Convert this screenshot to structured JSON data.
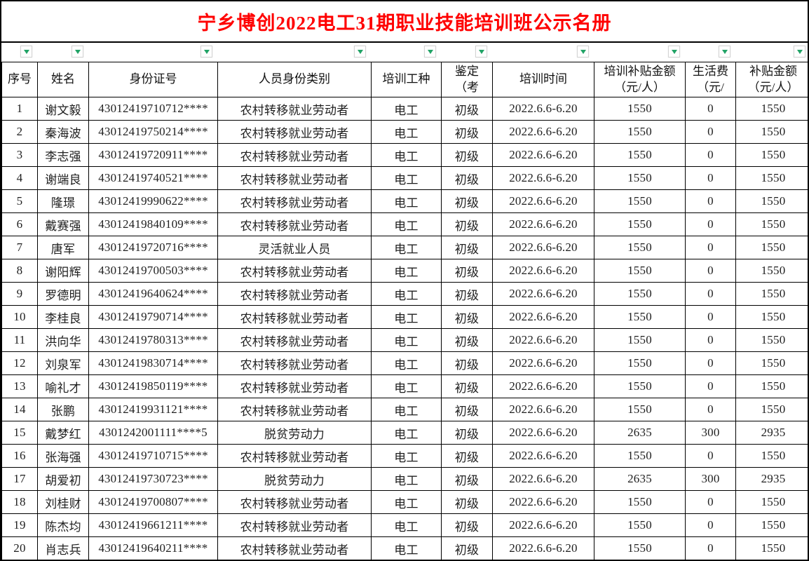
{
  "title": {
    "text": "宁乡博创2022电工31期职业技能培训班公示名册"
  },
  "colors": {
    "title_red": "#ff0000",
    "filter_green": "#21a366",
    "grid_black": "#000000"
  },
  "filter_row": {
    "button_count": 10,
    "icon": "chevron-down-icon"
  },
  "table": {
    "columns": [
      {
        "key": "index",
        "label": "序号"
      },
      {
        "key": "name",
        "label": "姓名"
      },
      {
        "key": "id-number",
        "label": "身份证号"
      },
      {
        "key": "identity-category",
        "label": "人员身份类别"
      },
      {
        "key": "trade",
        "label": "培训工种"
      },
      {
        "key": "appraisal-level",
        "label": "鉴定\n（考"
      },
      {
        "key": "training-time",
        "label": "培训时间"
      },
      {
        "key": "training-subsidy",
        "label": "培训补贴金额\n（元/人）"
      },
      {
        "key": "living-allowance",
        "label": "生活费\n（元/"
      },
      {
        "key": "subsidy-total",
        "label": "补贴金额\n（元/人）"
      }
    ],
    "rows": [
      [
        "1",
        "谢文毅",
        "43012419710712****",
        "农村转移就业劳动者",
        "电工",
        "初级",
        "2022.6.6-6.20",
        "1550",
        "0",
        "1550"
      ],
      [
        "2",
        "秦海波",
        "43012419750214****",
        "农村转移就业劳动者",
        "电工",
        "初级",
        "2022.6.6-6.20",
        "1550",
        "0",
        "1550"
      ],
      [
        "3",
        "李志强",
        "43012419720911****",
        "农村转移就业劳动者",
        "电工",
        "初级",
        "2022.6.6-6.20",
        "1550",
        "0",
        "1550"
      ],
      [
        "4",
        "谢端良",
        "43012419740521****",
        "农村转移就业劳动者",
        "电工",
        "初级",
        "2022.6.6-6.20",
        "1550",
        "0",
        "1550"
      ],
      [
        "5",
        "隆璟",
        "43012419990622****",
        "农村转移就业劳动者",
        "电工",
        "初级",
        "2022.6.6-6.20",
        "1550",
        "0",
        "1550"
      ],
      [
        "6",
        "戴赛强",
        "43012419840109****",
        "农村转移就业劳动者",
        "电工",
        "初级",
        "2022.6.6-6.20",
        "1550",
        "0",
        "1550"
      ],
      [
        "7",
        "唐军",
        "43012419720716****",
        "灵活就业人员",
        "电工",
        "初级",
        "2022.6.6-6.20",
        "1550",
        "0",
        "1550"
      ],
      [
        "8",
        "谢阳辉",
        "43012419700503****",
        "农村转移就业劳动者",
        "电工",
        "初级",
        "2022.6.6-6.20",
        "1550",
        "0",
        "1550"
      ],
      [
        "9",
        "罗德明",
        "43012419640624****",
        "农村转移就业劳动者",
        "电工",
        "初级",
        "2022.6.6-6.20",
        "1550",
        "0",
        "1550"
      ],
      [
        "10",
        "李桂良",
        "43012419790714****",
        "农村转移就业劳动者",
        "电工",
        "初级",
        "2022.6.6-6.20",
        "1550",
        "0",
        "1550"
      ],
      [
        "11",
        "洪向华",
        "43012419780313****",
        "农村转移就业劳动者",
        "电工",
        "初级",
        "2022.6.6-6.20",
        "1550",
        "0",
        "1550"
      ],
      [
        "12",
        "刘泉军",
        "43012419830714****",
        "农村转移就业劳动者",
        "电工",
        "初级",
        "2022.6.6-6.20",
        "1550",
        "0",
        "1550"
      ],
      [
        "13",
        "喻礼才",
        "43012419850119****",
        "农村转移就业劳动者",
        "电工",
        "初级",
        "2022.6.6-6.20",
        "1550",
        "0",
        "1550"
      ],
      [
        "14",
        "张鹏",
        "43012419931121****",
        "农村转移就业劳动者",
        "电工",
        "初级",
        "2022.6.6-6.20",
        "1550",
        "0",
        "1550"
      ],
      [
        "15",
        "戴梦红",
        "4301242001111****5",
        "脱贫劳动力",
        "电工",
        "初级",
        "2022.6.6-6.20",
        "2635",
        "300",
        "2935"
      ],
      [
        "16",
        "张海强",
        "43012419710715****",
        "农村转移就业劳动者",
        "电工",
        "初级",
        "2022.6.6-6.20",
        "1550",
        "0",
        "1550"
      ],
      [
        "17",
        "胡爱初",
        "43012419730723****",
        "脱贫劳动力",
        "电工",
        "初级",
        "2022.6.6-6.20",
        "2635",
        "300",
        "2935"
      ],
      [
        "18",
        "刘桂财",
        "43012419700807****",
        "农村转移就业劳动者",
        "电工",
        "初级",
        "2022.6.6-6.20",
        "1550",
        "0",
        "1550"
      ],
      [
        "19",
        "陈杰均",
        "43012419661211****",
        "农村转移就业劳动者",
        "电工",
        "初级",
        "2022.6.6-6.20",
        "1550",
        "0",
        "1550"
      ],
      [
        "20",
        "肖志兵",
        "43012419640211****",
        "农村转移就业劳动者",
        "电工",
        "初级",
        "2022.6.6-6.20",
        "1550",
        "0",
        "1550"
      ]
    ]
  }
}
